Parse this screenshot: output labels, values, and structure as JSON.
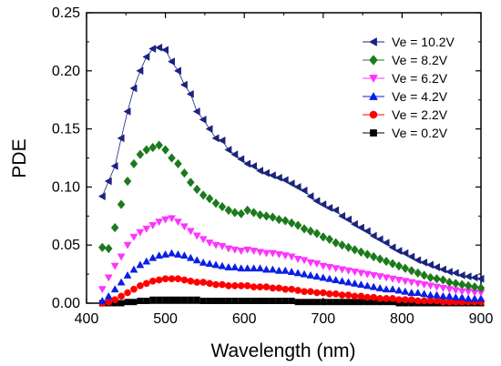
{
  "chart_data": {
    "type": "line",
    "xlabel": "Wavelength (nm)",
    "ylabel": "PDE",
    "xlim": [
      400,
      900
    ],
    "ylim": [
      0.0,
      0.25
    ],
    "x_ticks": [
      400,
      500,
      600,
      700,
      800,
      900
    ],
    "x_tick_labels": [
      "400",
      "500",
      "600",
      "700",
      "800",
      "900"
    ],
    "y_ticks": [
      0.0,
      0.05,
      0.1,
      0.15,
      0.2,
      0.25
    ],
    "y_tick_labels": [
      "0.00",
      "0.05",
      "0.10",
      "0.15",
      "0.20",
      "0.25"
    ],
    "grid": false,
    "legend_position": "top-right",
    "series": [
      {
        "name": "Ve = 10.2V",
        "color": "#1a237e",
        "marker": "triangle-left",
        "connected": true,
        "x": [
          420,
          428,
          436,
          444,
          452,
          460,
          468,
          476,
          484,
          492,
          500,
          508,
          516,
          524,
          532,
          540,
          548,
          556,
          564,
          572,
          580,
          588,
          596,
          604,
          612,
          620,
          628,
          636,
          644,
          652,
          660,
          668,
          676,
          684,
          692,
          700,
          708,
          716,
          724,
          732,
          740,
          748,
          756,
          764,
          772,
          780,
          788,
          796,
          804,
          812,
          820,
          828,
          836,
          844,
          852,
          860,
          868,
          876,
          884,
          892,
          900
        ],
        "y": [
          0.092,
          0.105,
          0.118,
          0.142,
          0.165,
          0.185,
          0.2,
          0.212,
          0.219,
          0.22,
          0.218,
          0.208,
          0.2,
          0.188,
          0.18,
          0.165,
          0.158,
          0.15,
          0.142,
          0.14,
          0.132,
          0.128,
          0.124,
          0.12,
          0.118,
          0.114,
          0.112,
          0.11,
          0.108,
          0.106,
          0.103,
          0.1,
          0.097,
          0.092,
          0.088,
          0.085,
          0.082,
          0.08,
          0.075,
          0.072,
          0.068,
          0.065,
          0.062,
          0.058,
          0.055,
          0.052,
          0.048,
          0.045,
          0.043,
          0.04,
          0.037,
          0.035,
          0.033,
          0.031,
          0.029,
          0.027,
          0.026,
          0.024,
          0.023,
          0.022,
          0.021
        ]
      },
      {
        "name": "Ve = 8.2V",
        "color": "#1b7a1b",
        "marker": "diamond",
        "connected": false,
        "x": [
          420,
          428,
          436,
          444,
          452,
          460,
          468,
          476,
          484,
          492,
          500,
          508,
          516,
          524,
          532,
          540,
          548,
          556,
          564,
          572,
          580,
          588,
          596,
          604,
          612,
          620,
          628,
          636,
          644,
          652,
          660,
          668,
          676,
          684,
          692,
          700,
          708,
          716,
          724,
          732,
          740,
          748,
          756,
          764,
          772,
          780,
          788,
          796,
          804,
          812,
          820,
          828,
          836,
          844,
          852,
          860,
          868,
          876,
          884,
          892,
          900
        ],
        "y": [
          0.048,
          0.047,
          0.065,
          0.085,
          0.105,
          0.12,
          0.128,
          0.132,
          0.134,
          0.136,
          0.132,
          0.125,
          0.12,
          0.112,
          0.104,
          0.098,
          0.093,
          0.09,
          0.086,
          0.083,
          0.08,
          0.078,
          0.077,
          0.08,
          0.078,
          0.076,
          0.075,
          0.074,
          0.072,
          0.071,
          0.069,
          0.067,
          0.064,
          0.062,
          0.06,
          0.057,
          0.055,
          0.052,
          0.05,
          0.048,
          0.046,
          0.044,
          0.042,
          0.04,
          0.038,
          0.036,
          0.034,
          0.032,
          0.03,
          0.028,
          0.026,
          0.024,
          0.022,
          0.021,
          0.02,
          0.018,
          0.017,
          0.016,
          0.015,
          0.014,
          0.013
        ]
      },
      {
        "name": "Ve = 6.2V",
        "color": "#ff33ff",
        "marker": "triangle-down",
        "connected": false,
        "x": [
          420,
          428,
          436,
          444,
          452,
          460,
          468,
          476,
          484,
          492,
          500,
          508,
          516,
          524,
          532,
          540,
          548,
          556,
          564,
          572,
          580,
          588,
          596,
          604,
          612,
          620,
          628,
          636,
          644,
          652,
          660,
          668,
          676,
          684,
          692,
          700,
          708,
          716,
          724,
          732,
          740,
          748,
          756,
          764,
          772,
          780,
          788,
          796,
          804,
          812,
          820,
          828,
          836,
          844,
          852,
          860,
          868,
          876,
          884,
          892,
          900
        ],
        "y": [
          0.012,
          0.022,
          0.032,
          0.04,
          0.05,
          0.057,
          0.061,
          0.064,
          0.067,
          0.07,
          0.072,
          0.073,
          0.07,
          0.066,
          0.062,
          0.058,
          0.055,
          0.052,
          0.05,
          0.049,
          0.047,
          0.046,
          0.045,
          0.046,
          0.045,
          0.044,
          0.043,
          0.043,
          0.042,
          0.041,
          0.04,
          0.038,
          0.037,
          0.035,
          0.034,
          0.032,
          0.031,
          0.03,
          0.029,
          0.028,
          0.027,
          0.026,
          0.025,
          0.024,
          0.023,
          0.022,
          0.021,
          0.02,
          0.019,
          0.018,
          0.017,
          0.016,
          0.015,
          0.014,
          0.013,
          0.012,
          0.011,
          0.01,
          0.01,
          0.009,
          0.009
        ]
      },
      {
        "name": "Ve = 4.2V",
        "color": "#0a1ee6",
        "marker": "triangle-up",
        "connected": false,
        "x": [
          420,
          428,
          436,
          444,
          452,
          460,
          468,
          476,
          484,
          492,
          500,
          508,
          516,
          524,
          532,
          540,
          548,
          556,
          564,
          572,
          580,
          588,
          596,
          604,
          612,
          620,
          628,
          636,
          644,
          652,
          660,
          668,
          676,
          684,
          692,
          700,
          708,
          716,
          724,
          732,
          740,
          748,
          756,
          764,
          772,
          780,
          788,
          796,
          804,
          812,
          820,
          828,
          836,
          844,
          852,
          860,
          868,
          876,
          884,
          892,
          900
        ],
        "y": [
          0.002,
          0.006,
          0.012,
          0.018,
          0.024,
          0.029,
          0.033,
          0.036,
          0.039,
          0.041,
          0.042,
          0.043,
          0.042,
          0.041,
          0.039,
          0.037,
          0.035,
          0.034,
          0.033,
          0.032,
          0.031,
          0.031,
          0.03,
          0.03,
          0.03,
          0.03,
          0.029,
          0.029,
          0.028,
          0.028,
          0.027,
          0.026,
          0.025,
          0.024,
          0.023,
          0.022,
          0.021,
          0.02,
          0.019,
          0.018,
          0.017,
          0.016,
          0.015,
          0.014,
          0.013,
          0.012,
          0.012,
          0.011,
          0.01,
          0.009,
          0.009,
          0.008,
          0.007,
          0.007,
          0.006,
          0.006,
          0.005,
          0.005,
          0.004,
          0.004,
          0.004
        ]
      },
      {
        "name": "Ve = 2.2V",
        "color": "#ff0000",
        "marker": "circle",
        "connected": false,
        "x": [
          420,
          428,
          436,
          444,
          452,
          460,
          468,
          476,
          484,
          492,
          500,
          508,
          516,
          524,
          532,
          540,
          548,
          556,
          564,
          572,
          580,
          588,
          596,
          604,
          612,
          620,
          628,
          636,
          644,
          652,
          660,
          668,
          676,
          684,
          692,
          700,
          708,
          716,
          724,
          732,
          740,
          748,
          756,
          764,
          772,
          780,
          788,
          796,
          804,
          812,
          820,
          828,
          836,
          844,
          852,
          860,
          868,
          876,
          884,
          892,
          900
        ],
        "y": [
          0.0,
          0.001,
          0.003,
          0.006,
          0.009,
          0.012,
          0.015,
          0.017,
          0.019,
          0.02,
          0.021,
          0.021,
          0.021,
          0.02,
          0.019,
          0.018,
          0.018,
          0.017,
          0.016,
          0.016,
          0.015,
          0.015,
          0.015,
          0.015,
          0.014,
          0.014,
          0.014,
          0.013,
          0.013,
          0.012,
          0.012,
          0.011,
          0.01,
          0.01,
          0.009,
          0.009,
          0.008,
          0.008,
          0.007,
          0.007,
          0.006,
          0.006,
          0.005,
          0.005,
          0.004,
          0.004,
          0.004,
          0.003,
          0.003,
          0.003,
          0.002,
          0.002,
          0.002,
          0.002,
          0.001,
          0.001,
          0.001,
          0.001,
          0.001,
          0.001,
          0.001
        ]
      },
      {
        "name": "Ve = 0.2V",
        "color": "#000000",
        "marker": "square",
        "connected": false,
        "x": [
          420,
          428,
          436,
          444,
          452,
          460,
          468,
          476,
          484,
          492,
          500,
          508,
          516,
          524,
          532,
          540,
          548,
          556,
          564,
          572,
          580,
          588,
          596,
          604,
          612,
          620,
          628,
          636,
          644,
          652,
          660,
          668,
          676,
          684,
          692,
          700,
          708,
          716,
          724,
          732,
          740,
          748,
          756,
          764,
          772,
          780,
          788,
          796,
          804,
          812,
          820,
          828,
          836,
          844,
          852,
          860,
          868,
          876,
          884,
          892,
          900
        ],
        "y": [
          0.0,
          0.0,
          0.0,
          0.0,
          0.001,
          0.001,
          0.002,
          0.002,
          0.003,
          0.003,
          0.003,
          0.003,
          0.003,
          0.003,
          0.003,
          0.003,
          0.002,
          0.002,
          0.002,
          0.002,
          0.002,
          0.002,
          0.002,
          0.002,
          0.002,
          0.002,
          0.002,
          0.002,
          0.002,
          0.002,
          0.002,
          0.001,
          0.001,
          0.001,
          0.001,
          0.001,
          0.001,
          0.001,
          0.001,
          0.001,
          0.001,
          0.001,
          0.001,
          0.001,
          0.001,
          0.001,
          0.001,
          0.0,
          0.0,
          0.0,
          0.0,
          0.0,
          0.0,
          0.0,
          0.0,
          0.0,
          0.0,
          0.0,
          0.0,
          0.0,
          0.0
        ]
      }
    ]
  }
}
